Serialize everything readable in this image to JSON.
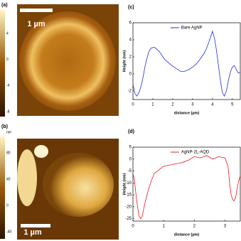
{
  "chart_data": [
    {
      "type": "line",
      "label": "(c)",
      "xlabel": "distance (µm)",
      "ylabel": "Height (nm)",
      "xlim": [
        0,
        5.4
      ],
      "xticks": [
        0,
        1,
        2,
        3,
        4,
        5
      ],
      "ylim": [
        -3,
        6
      ],
      "yticks": [
        -2,
        0,
        2,
        4,
        6
      ],
      "x": [
        0,
        0.1,
        0.2,
        0.3,
        0.4,
        0.5,
        0.6,
        0.7,
        0.8,
        0.9,
        1.0,
        1.1,
        1.2,
        1.3,
        1.4,
        1.5,
        1.6,
        1.8,
        2.0,
        2.2,
        2.4,
        2.6,
        2.8,
        3.0,
        3.2,
        3.4,
        3.6,
        3.7,
        3.8,
        3.9,
        4.0,
        4.1,
        4.2,
        4.3,
        4.4,
        4.5,
        4.6,
        4.7,
        4.8,
        4.9,
        5.0,
        5.1,
        5.2,
        5.3,
        5.4
      ],
      "series": [
        {
          "name": "Bare AgNP",
          "color": "#1f2fd8",
          "values": [
            -1.2,
            -2.3,
            -2.6,
            -2.2,
            -1.5,
            -0.5,
            0.8,
            1.8,
            2.6,
            3.0,
            3.1,
            3.1,
            2.9,
            2.7,
            2.4,
            2.0,
            1.7,
            1.3,
            0.9,
            0.6,
            0.3,
            0.3,
            0.5,
            0.8,
            1.2,
            1.8,
            2.5,
            3.0,
            3.6,
            4.3,
            5.0,
            4.2,
            2.8,
            1.0,
            -0.8,
            -2.2,
            -2.6,
            -2.0,
            -0.8,
            0.2,
            0.8,
            1.0,
            0.5,
            0.1,
            0.2
          ]
        }
      ]
    },
    {
      "type": "line",
      "label": "(d)",
      "xlabel": "distance (µm)",
      "ylabel": "Height (nm)",
      "xlim": [
        0,
        3.5
      ],
      "xticks": [
        0,
        1,
        2,
        3
      ],
      "ylim": [
        -26,
        5
      ],
      "yticks": [
        -25,
        -20,
        -15,
        -10,
        -5,
        0,
        5
      ],
      "x": [
        0,
        0.05,
        0.1,
        0.15,
        0.2,
        0.25,
        0.3,
        0.35,
        0.4,
        0.5,
        0.6,
        0.7,
        0.8,
        0.9,
        1.0,
        1.2,
        1.4,
        1.6,
        1.8,
        2.0,
        2.2,
        2.4,
        2.6,
        2.8,
        3.0,
        3.1,
        3.15,
        3.2,
        3.25,
        3.3,
        3.35,
        3.4,
        3.45,
        3.5
      ],
      "series": [
        {
          "name": "AgNP-2L-AQD",
          "color": "#e8191e",
          "values": [
            -6,
            -9,
            -15,
            -20,
            -24,
            -25,
            -24,
            -21,
            -18,
            -13,
            -9,
            -6,
            -5,
            -4,
            -3,
            -2.5,
            -2,
            -1.5,
            -0.5,
            1,
            0.5,
            1.5,
            0,
            1,
            0.5,
            -3,
            -10,
            -15,
            -17,
            -17.5,
            -16,
            -12,
            -9,
            -7
          ]
        }
      ]
    }
  ],
  "images": [
    {
      "label": "(a)",
      "scale_bar": "1 µm",
      "colorbar_ticks": [
        4,
        0,
        -4,
        -8
      ]
    },
    {
      "label": "(b)",
      "scale_bar": "1 µm",
      "colorbar_unit": "nm",
      "colorbar_ticks": [
        80,
        40,
        0,
        -40
      ]
    }
  ]
}
